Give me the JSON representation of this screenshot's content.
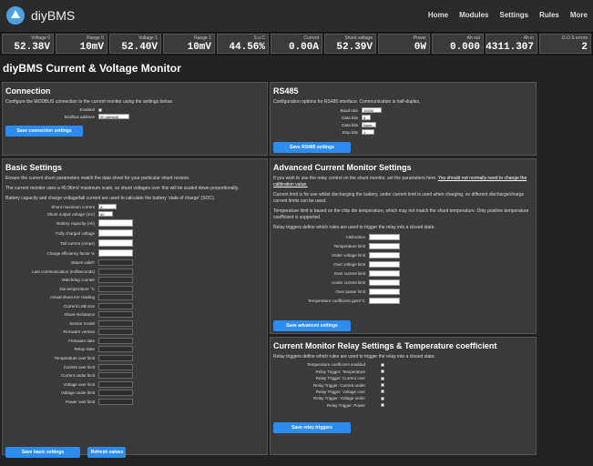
{
  "header": {
    "brand": "diyBMS",
    "nav": [
      "Home",
      "Modules",
      "Settings",
      "Rules",
      "More"
    ]
  },
  "tiles": [
    {
      "label": "Voltage 0",
      "value": "52.38V"
    },
    {
      "label": "Range 0",
      "value": "10mV"
    },
    {
      "label": "Voltage 1",
      "value": "52.40V"
    },
    {
      "label": "Range 1",
      "value": "10mV"
    },
    {
      "label": "S.o.C",
      "value": "44.56%"
    },
    {
      "label": "Current",
      "value": "0.00A"
    },
    {
      "label": "Shunt voltage",
      "value": "52.39V"
    },
    {
      "label": "Power",
      "value": "0W"
    },
    {
      "label": "Ah out",
      "value": "0.000"
    },
    {
      "label": "Ah in",
      "value": "4311.307"
    },
    {
      "label": "O.O.S errors",
      "value": "2"
    }
  ],
  "page_title": "diyBMS Current & Voltage Monitor",
  "connection": {
    "title": "Connection",
    "desc": "Configure the MODBUS connection to the current monitor using the settings below.",
    "enabled_label": "Enabled",
    "address_label": "Modbus address",
    "address_value": "90 (default)",
    "save_label": "Save connection settings"
  },
  "rs485": {
    "title": "RS485",
    "desc": "Configuration options for RS485 interface. Communication is half-duplex.",
    "fields": [
      {
        "label": "Baud rate",
        "value": "19200"
      },
      {
        "label": "Data bits",
        "value": "8"
      },
      {
        "label": "Data bits",
        "value": "None"
      },
      {
        "label": "Stop bits",
        "value": "1"
      }
    ],
    "save_label": "Save RS485 settings"
  },
  "basic": {
    "title": "Basic Settings",
    "p1": "Ensure the current shunt parameters match the data sheet for your particular shunt resistor.",
    "p2": "The current monitor uses a 40.96mV maximum scale, so shunt voltages over this will be scaled down proportionally.",
    "p3": "Battery capacity and charge voltage/tail current are used to calculate the battery 'state of charge' (SOC).",
    "shunt_max_label": "Shunt maximum current",
    "shunt_max_value": "A",
    "shunt_out_label": "Shunt output voltage (mV)",
    "shunt_out_value": "50",
    "fields": [
      "Battery capacity (Ah)",
      "Fully charged voltage",
      "Tail current (Amps)",
      "Charge efficiency factor %",
      "Values valid?",
      "Last communication (milliseconds)",
      "Watchdog counter",
      "Die temperature °C",
      "Actual shunt mV reading",
      "Current LSB size",
      "Shunt resistance",
      "Sensor model",
      "Firmware version",
      "Firmware date",
      "Relay state",
      "Temperature over limit",
      "Current over limit",
      "Current under limit",
      "Voltage over limit",
      "Voltage under limit",
      "Power over limit"
    ],
    "save_label": "Save basic settings",
    "refresh_label": "Refresh values"
  },
  "advanced": {
    "title": "Advanced Current Monitor Settings",
    "p1a": "If you wish to use the relay control on the shunt monitor, set the parameters here. ",
    "p1b": "You should not normally need to change the calibration value.",
    "p2": "Current limit is for use whilst discharging the battery, under current limit is used when charging, so different discharge/charge current limits can be used.",
    "p3": "Temperature limit is based on the chip die temperature, which may not match the shunt temperature. Only positive temperature coefficient is supported.",
    "p4": "Relay triggers define which rules are used to trigger the relay into a closed state.",
    "fields": [
      "Calibration",
      "Temperature limit",
      "Under voltage limit",
      "Over voltage limit",
      "Over current limit",
      "Under current limit",
      "Over power limit",
      "Temperature coefficient ppm/°C"
    ],
    "save_label": "Save advanced settings"
  },
  "relay": {
    "title": "Current Monitor Relay Settings & Temperature coefficient",
    "desc": "Relay triggers define which rules are used to trigger the relay into a closed state.",
    "fields": [
      "Temperature coefficient enabled",
      "Relay Trigger: Temperature",
      "Relay Trigger: Current over",
      "Relay Trigger: Current under",
      "Relay Trigger: Voltage over",
      "Relay Trigger: Voltage under",
      "Relay Trigger: Power"
    ],
    "save_label": "Save relay triggers"
  },
  "colors": {
    "accent": "#2c8cef",
    "panel": "#3a3a3a",
    "background": "#222222"
  }
}
